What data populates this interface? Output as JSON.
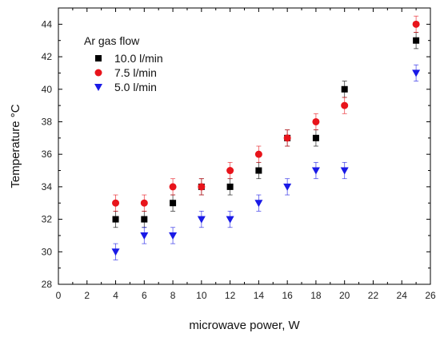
{
  "chart_data": {
    "type": "scatter",
    "xlabel": "microwave power, W",
    "ylabel": "Temperature °C",
    "xlim": [
      0,
      26
    ],
    "ylim": [
      28,
      45
    ],
    "x_ticks": [
      0,
      2,
      4,
      6,
      8,
      10,
      12,
      14,
      16,
      18,
      20,
      22,
      24,
      26
    ],
    "y_ticks": [
      28,
      30,
      32,
      34,
      36,
      38,
      40,
      42,
      44
    ],
    "grid": false,
    "legend": {
      "title": "Ar gas flow",
      "placement": "top-left"
    },
    "series": [
      {
        "name": "10.0 l/min",
        "marker": "square",
        "color": "#000000",
        "points": [
          {
            "x": 4,
            "y": 32,
            "err": 0.5
          },
          {
            "x": 6,
            "y": 32,
            "err": 0.5
          },
          {
            "x": 8,
            "y": 33,
            "err": 0.5
          },
          {
            "x": 10,
            "y": 34,
            "err": 0.5
          },
          {
            "x": 12,
            "y": 34,
            "err": 0.5
          },
          {
            "x": 14,
            "y": 35,
            "err": 0.5
          },
          {
            "x": 16,
            "y": 37,
            "err": 0.5
          },
          {
            "x": 18,
            "y": 37,
            "err": 0.5
          },
          {
            "x": 20,
            "y": 40,
            "err": 0.5
          },
          {
            "x": 25,
            "y": 43,
            "err": 0.5
          }
        ]
      },
      {
        "name": "7.5 l/min",
        "marker": "circle",
        "color": "#e8141b",
        "points": [
          {
            "x": 4,
            "y": 33,
            "err": 0.5
          },
          {
            "x": 6,
            "y": 33,
            "err": 0.5
          },
          {
            "x": 8,
            "y": 34,
            "err": 0.5
          },
          {
            "x": 10,
            "y": 34,
            "err": 0.5
          },
          {
            "x": 12,
            "y": 35,
            "err": 0.5
          },
          {
            "x": 14,
            "y": 36,
            "err": 0.5
          },
          {
            "x": 16,
            "y": 37,
            "err": 0.5
          },
          {
            "x": 18,
            "y": 38,
            "err": 0.5
          },
          {
            "x": 20,
            "y": 39,
            "err": 0.5
          },
          {
            "x": 25,
            "y": 44,
            "err": 0.5
          }
        ]
      },
      {
        "name": "5.0 l/min",
        "marker": "triangle-down",
        "color": "#1a1ae6",
        "points": [
          {
            "x": 4,
            "y": 30,
            "err": 0.5
          },
          {
            "x": 6,
            "y": 31,
            "err": 0.5
          },
          {
            "x": 8,
            "y": 31,
            "err": 0.5
          },
          {
            "x": 10,
            "y": 32,
            "err": 0.5
          },
          {
            "x": 12,
            "y": 32,
            "err": 0.5
          },
          {
            "x": 14,
            "y": 33,
            "err": 0.5
          },
          {
            "x": 16,
            "y": 34,
            "err": 0.5
          },
          {
            "x": 18,
            "y": 35,
            "err": 0.5
          },
          {
            "x": 20,
            "y": 35,
            "err": 0.5
          },
          {
            "x": 25,
            "y": 41,
            "err": 0.5
          }
        ]
      }
    ]
  }
}
